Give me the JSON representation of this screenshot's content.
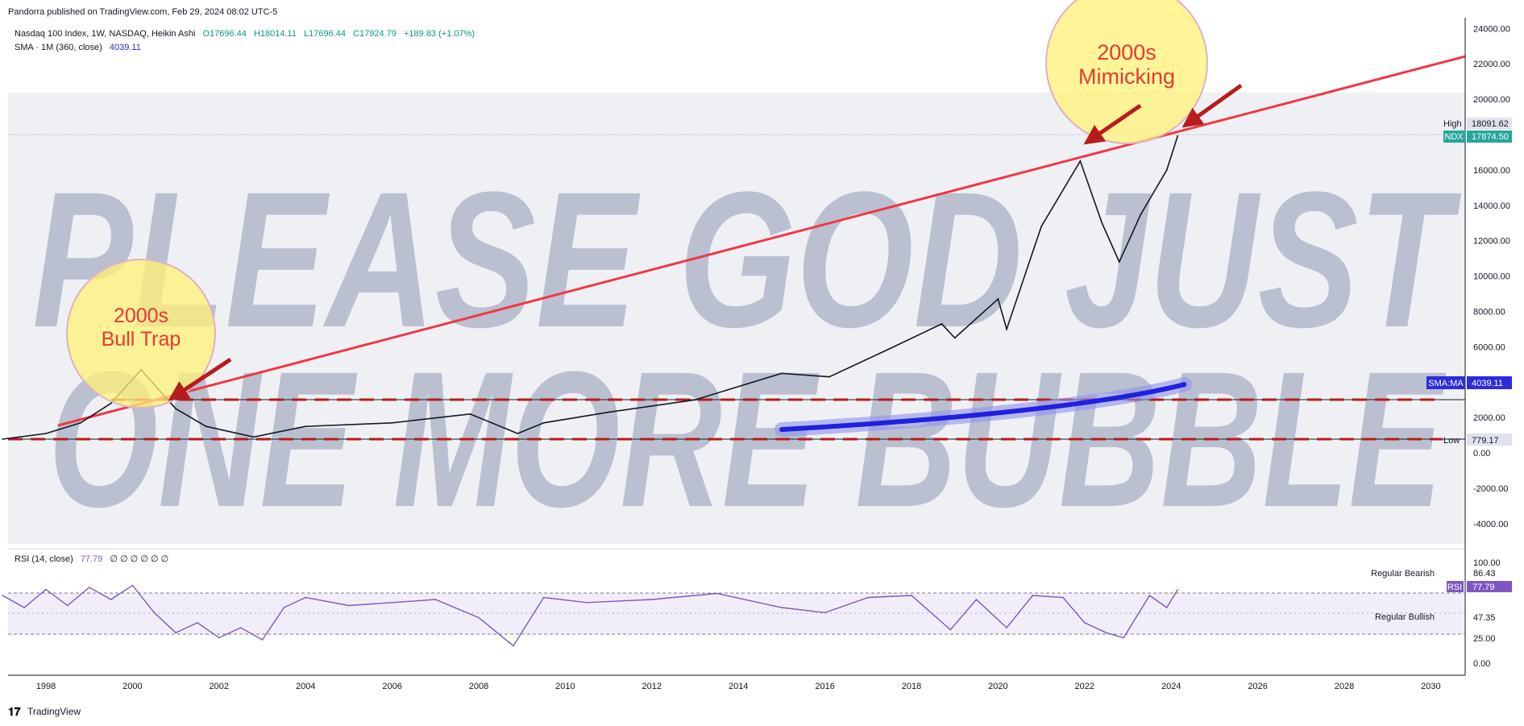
{
  "header": {
    "published": "Pandorra published on TradingView.com, Feb 29, 2024 08:02 UTC-5"
  },
  "legend": {
    "symbol": "Nasdaq 100 Index, 1W, NASDAQ, Heikin Ashi",
    "open": "O17696.44",
    "high": "H18014.11",
    "low": "L17696.44",
    "close": "C17924.79",
    "change": "+189.83 (+1.07%)",
    "sma_label": "SMA · 1M (360, close)",
    "sma_value": "4039.11"
  },
  "overlay": {
    "watermark_line1": "PLEASE GOD JUST",
    "watermark_line2": "ONE MORE BUBBLE",
    "bubble_left_line1": "2000s",
    "bubble_left_line2": "Bull Trap",
    "bubble_right_line1": "2000s",
    "bubble_right_line2": "Mimicking"
  },
  "price_badges": {
    "high_label": "High",
    "high_value": "18091.62",
    "ndx_label": "NDX",
    "ndx_value": "17874.50",
    "sma_label": "SMA:MA",
    "sma_value": "4039.11",
    "low_label": "Low",
    "low_value": "779.17"
  },
  "rsi": {
    "label": "RSI (14, close)",
    "value": "77.79",
    "extra": "∅ ∅ ∅ ∅ ∅ ∅",
    "regular_bearish": "Regular Bearish",
    "regular_bullish": "Regular Bullish",
    "badge_label": "RSI",
    "badge_value": "77.79",
    "axis": [
      "100.00",
      "86.43",
      "47.35",
      "25.00",
      "0.00"
    ]
  },
  "footer": {
    "brand": "TradingView"
  },
  "colors": {
    "price_line": "#131722",
    "trendline": "#f23645",
    "dashed": "#b71c1c",
    "sma": "#2020e0",
    "rsi": "#7e57c2",
    "bubble": "#fff176",
    "ndx_badge": "#26a69a",
    "sma_badge": "#2c2cdc"
  },
  "chart_data": [
    {
      "type": "line",
      "title": "Nasdaq 100 Index, 1W, NASDAQ, Heikin Ashi",
      "x_ticks": [
        "1998",
        "2000",
        "2002",
        "2004",
        "2006",
        "2008",
        "2010",
        "2012",
        "2014",
        "2016",
        "2018",
        "2020",
        "2022",
        "2024",
        "2026",
        "2028",
        "2030"
      ],
      "y_ticks": [
        "24000.00",
        "22000.00",
        "20000.00",
        "16000.00",
        "14000.00",
        "12000.00",
        "10000.00",
        "8000.00",
        "6000.00",
        "2000.00",
        "0.00",
        "-2000.00",
        "-4000.00"
      ],
      "ylim": [
        -5000,
        24000
      ],
      "series": [
        {
          "name": "NDX",
          "x": [
            1997.0,
            1998.0,
            1998.8,
            1999.5,
            2000.2,
            2000.6,
            2001.0,
            2001.7,
            2002.8,
            2004.0,
            2006.0,
            2007.8,
            2008.9,
            2009.5,
            2011.0,
            2013.0,
            2015.0,
            2016.1,
            2017.5,
            2018.7,
            2019.0,
            2020.0,
            2020.2,
            2021.0,
            2021.9,
            2022.4,
            2022.8,
            2023.3,
            2023.9,
            2024.15
          ],
          "values": [
            779,
            1100,
            1700,
            2800,
            4700,
            3600,
            2500,
            1500,
            900,
            1500,
            1700,
            2200,
            1100,
            1700,
            2300,
            3000,
            4500,
            4300,
            5900,
            7300,
            6500,
            8700,
            7000,
            12800,
            16500,
            13000,
            10800,
            13500,
            16000,
            17925
          ]
        }
      ]
    },
    {
      "type": "line",
      "title": "RSI (14, close)",
      "ylim": [
        0,
        100
      ],
      "series": [
        {
          "name": "RSI",
          "x": [
            1997.0,
            1997.5,
            1998.0,
            1998.5,
            1999.0,
            1999.5,
            2000.0,
            2000.5,
            2001.0,
            2001.5,
            2002.0,
            2002.5,
            2003.0,
            2003.5,
            2004.0,
            2005.0,
            2006.0,
            2007.0,
            2008.0,
            2008.8,
            2009.5,
            2010.5,
            2012.0,
            2013.5,
            2015.0,
            2016.0,
            2017.0,
            2018.0,
            2018.9,
            2019.5,
            2020.2,
            2020.8,
            2021.5,
            2022.0,
            2022.5,
            2022.9,
            2023.5,
            2023.9,
            2024.15
          ],
          "values": [
            72,
            60,
            78,
            62,
            80,
            68,
            82,
            55,
            35,
            45,
            30,
            40,
            28,
            60,
            70,
            62,
            65,
            68,
            50,
            22,
            70,
            65,
            68,
            74,
            60,
            55,
            70,
            72,
            38,
            68,
            40,
            72,
            70,
            45,
            35,
            30,
            72,
            60,
            77.79
          ]
        }
      ]
    }
  ]
}
